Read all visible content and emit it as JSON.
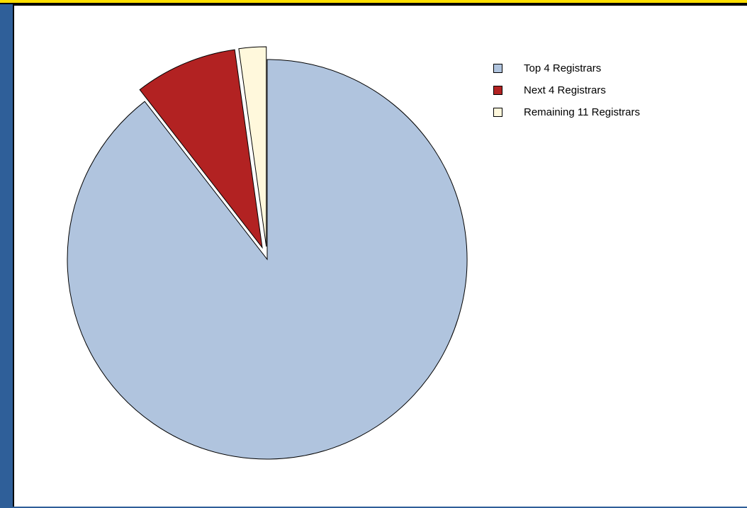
{
  "chart_data": {
    "type": "pie",
    "categories": [
      "Top 4 Registrars",
      "Next 4 Registrars",
      "Remaining 11 Registrars"
    ],
    "values": [
      89.5,
      8.3,
      2.2
    ],
    "unit": "percent",
    "start_angle_deg": 0,
    "direction": "clockwise from 12 o'clock",
    "exploded": [
      false,
      true,
      true
    ],
    "colors": [
      "#b0c4de",
      "#b22222",
      "#fff8dc"
    ],
    "edge_color": "#000000",
    "legend": {
      "placement": "top-right",
      "entries": [
        "Top 4 Registrars",
        "Next 4 Registrars",
        "Remaining 11 Registrars"
      ]
    },
    "title": "",
    "xlabel": "",
    "ylabel": ""
  },
  "theme": {
    "background": "#2f5f99",
    "top_bar": "#ffdf00",
    "panel": "#ffffff"
  }
}
